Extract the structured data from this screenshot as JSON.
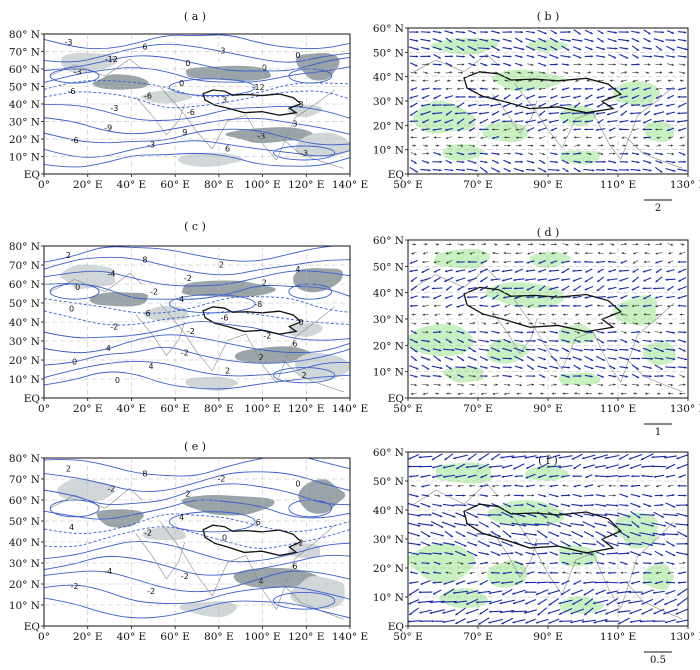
{
  "figure": {
    "panels": [
      {
        "id": "a",
        "label": "( a )",
        "type": "contour",
        "contour_labels": [
          "-3",
          "0",
          "3",
          "6",
          "-12",
          "-9",
          "-3",
          "-6",
          "9",
          "0",
          "-6",
          "-3",
          "-12",
          "3",
          "-6",
          "0",
          "3",
          "-3",
          "0",
          "-3",
          "6",
          "-3",
          "-6",
          "-3"
        ],
        "map": {
          "lat_labels": [
            "80° N",
            "70° N",
            "60° N",
            "50° N",
            "40° N",
            "30° N",
            "20° N",
            "10° N",
            "EQ"
          ],
          "lon_labels": [
            "0°",
            "20° E",
            "40° E",
            "60° E",
            "80° E",
            "100° E",
            "120° E",
            "140° E"
          ]
        }
      },
      {
        "id": "b",
        "label": "( b )",
        "type": "vector",
        "scale_label": "2",
        "map": {
          "lat_labels": [
            "60° N",
            "50° N",
            "40° N",
            "30° N",
            "20° N",
            "10° N",
            "EQ"
          ],
          "lon_labels": [
            "50° E",
            "70° E",
            "90° E",
            "110° E",
            "130° E"
          ]
        }
      },
      {
        "id": "c",
        "label": "( c )",
        "type": "contour",
        "contour_labels": [
          "2",
          "4",
          "6",
          "8",
          "-8",
          "4",
          "2",
          "0",
          "-2",
          "4",
          "6",
          "2",
          "-4",
          "-6",
          "0",
          "-2",
          "0",
          "4",
          "2",
          "-2",
          "2",
          "0",
          "-2",
          "2",
          "-2",
          "-2",
          "0"
        ],
        "map": {
          "lat_labels": [
            "80° N",
            "70° N",
            "60° N",
            "50° N",
            "40° N",
            "30° N",
            "20° N",
            "10° N",
            "EQ"
          ],
          "lon_labels": [
            "0°",
            "20° E",
            "40° E",
            "60° E",
            "80° E",
            "100° E",
            "120° E",
            "140° E"
          ]
        }
      },
      {
        "id": "d",
        "label": "( d )",
        "type": "vector",
        "scale_label": "1",
        "map": {
          "lat_labels": [
            "60° N",
            "50° N",
            "40° N",
            "30° N",
            "20° N",
            "10° N",
            "EQ"
          ],
          "lon_labels": [
            "50° E",
            "70° E",
            "90° E",
            "110° E",
            "130° E"
          ]
        }
      },
      {
        "id": "e",
        "label": "( e )",
        "type": "contour",
        "contour_labels": [
          "2",
          "4",
          "6",
          "8",
          "6",
          "-4",
          "-2",
          "4",
          "-2",
          "0",
          "-2",
          "4",
          "-2",
          "0",
          "-2",
          "2",
          "2",
          "-2"
        ],
        "map": {
          "lat_labels": [
            "80° N",
            "70° N",
            "60° N",
            "50° N",
            "40° N",
            "30° N",
            "20° N",
            "10° N",
            "EQ"
          ],
          "lon_labels": [
            "0°",
            "20° E",
            "40° E",
            "60° E",
            "80° E",
            "100° E",
            "120° E",
            "140° E"
          ]
        }
      },
      {
        "id": "f",
        "label": "( f )",
        "type": "vector",
        "scale_label": "0.5",
        "map": {
          "lat_labels": [
            "60° N",
            "50° N",
            "40° N",
            "30° N",
            "20° N",
            "10° N",
            "EQ"
          ],
          "lon_labels": [
            "50° E",
            "70° E",
            "90° E",
            "110° E",
            "130° E"
          ]
        }
      }
    ],
    "colors": {
      "contour": "#3a5fcd",
      "shade_dark": "#9aa3a8",
      "shade_light": "#d1d6d8",
      "vector": "#1a2aa8",
      "vector_light": "#333333",
      "green": "#c8f0c0",
      "plateau": "#111111",
      "coast": "#8a8a8a"
    }
  }
}
